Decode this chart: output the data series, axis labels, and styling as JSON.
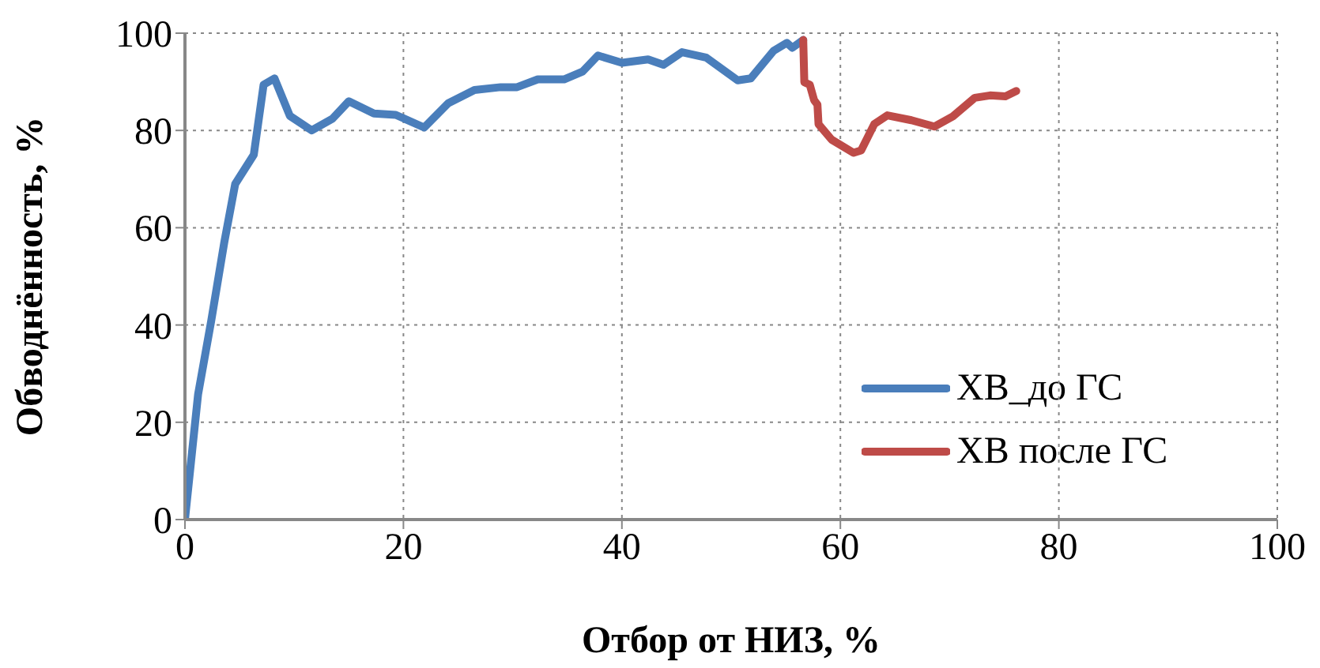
{
  "chart_data": {
    "type": "line",
    "xlabel": "Отбор от НИЗ, %",
    "ylabel": "Обводнённость, %",
    "xlim": [
      0,
      100
    ],
    "xticks": [
      0,
      20,
      40,
      60,
      80,
      100
    ],
    "ylim": [
      0,
      100
    ],
    "yticks": [
      0,
      20,
      40,
      60,
      80,
      100
    ],
    "grid": true,
    "legend": "bottom right",
    "line_style": "solid",
    "series": [
      {
        "name": "ХВ_до ГС",
        "color": "#4a7ebb",
        "x": [
          0,
          1.2,
          2.4,
          3.6,
          4.6,
          6.3,
          7.2,
          8.2,
          9.6,
          11.6,
          13.5,
          15,
          17.3,
          19.3,
          21.9,
          24.1,
          26.5,
          28.9,
          30.4,
          32.3,
          34.7,
          36.4,
          37.8,
          40,
          42.4,
          43.8,
          45.5,
          47.7,
          50.6,
          51.8,
          53.9,
          55.1,
          55.6,
          56.6
        ],
        "values": [
          0,
          25.7,
          40.8,
          57,
          69,
          75,
          89.4,
          90.7,
          83,
          80,
          82.4,
          86,
          83.5,
          83.2,
          80.6,
          85.6,
          88.3,
          88.9,
          88.9,
          90.5,
          90.5,
          92.1,
          95.4,
          93.9,
          94.6,
          93.5,
          96.1,
          95,
          90.3,
          90.7,
          96.4,
          98,
          97,
          98.6
        ]
      },
      {
        "name": "ХВ после ГС",
        "color": "#be4b48",
        "x": [
          56.6,
          56.7,
          57.2,
          57.6,
          57.9,
          58,
          59.2,
          61.2,
          61.9,
          63.1,
          64.3,
          66.5,
          68.6,
          70.3,
          72.3,
          73.7,
          75.1,
          76.1
        ],
        "values": [
          98.6,
          89.9,
          89.4,
          86.2,
          85.3,
          81.3,
          78.1,
          75.4,
          75.9,
          81.3,
          83.1,
          82.1,
          80.8,
          82.9,
          86.7,
          87.2,
          87,
          88.1
        ]
      }
    ]
  }
}
